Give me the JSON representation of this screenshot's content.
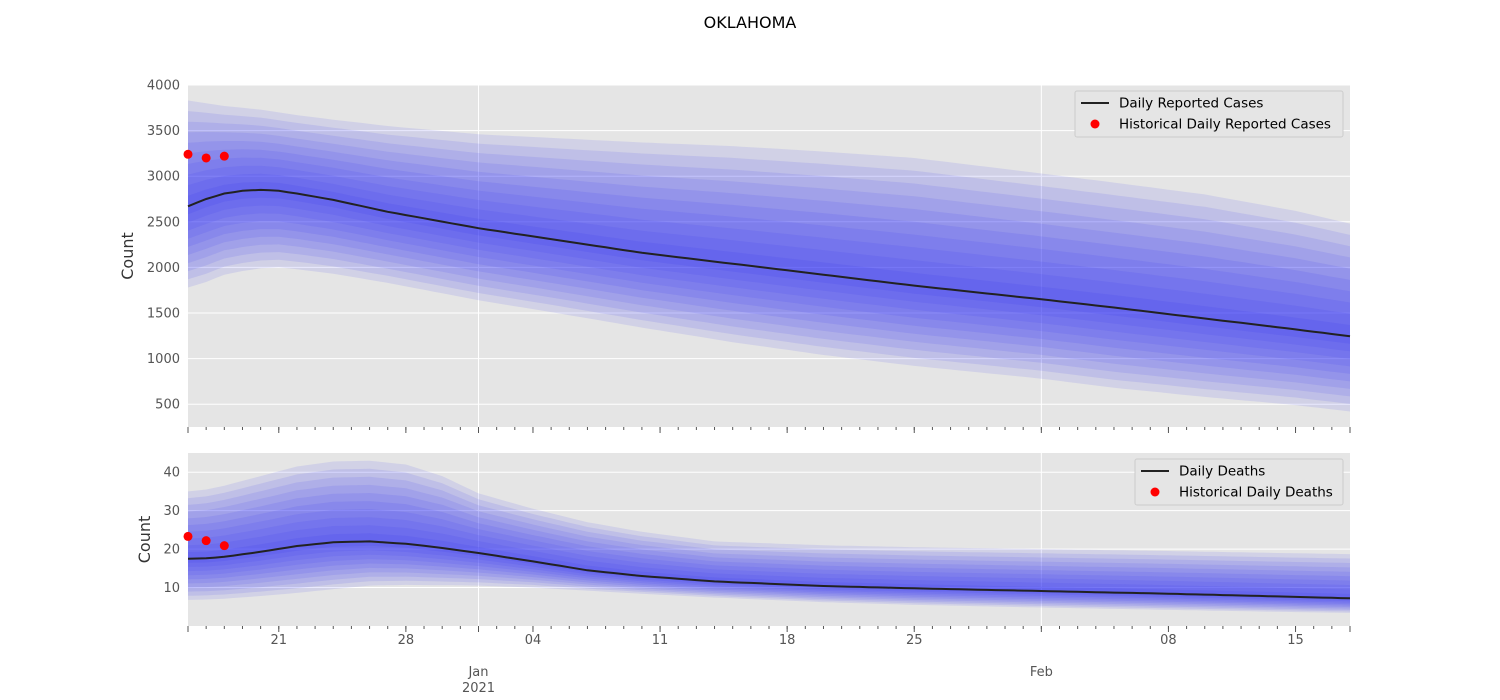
{
  "title": "OKLAHOMA",
  "chart_data": [
    {
      "type": "line",
      "ylabel": "Count",
      "xlim": [
        "2020-12-16",
        "2021-02-18"
      ],
      "ylim": [
        250,
        4000
      ],
      "yticks": [
        500,
        1000,
        1500,
        2000,
        2500,
        3000,
        3500,
        4000
      ],
      "grid": true,
      "legend_position": "top-right",
      "band_color": "#2a2af5",
      "line_color": "#222222",
      "point_color": "#ff0000",
      "series": [
        {
          "name": "Daily Reported Cases",
          "x": [
            "2020-12-16",
            "2020-12-17",
            "2020-12-18",
            "2020-12-19",
            "2020-12-20",
            "2020-12-21",
            "2020-12-22",
            "2020-12-24",
            "2020-12-27",
            "2021-01-01",
            "2021-01-05",
            "2021-01-10",
            "2021-01-15",
            "2021-01-20",
            "2021-01-25",
            "2021-02-01",
            "2021-02-05",
            "2021-02-10",
            "2021-02-15",
            "2021-02-18"
          ],
          "values": [
            2670,
            2750,
            2810,
            2840,
            2850,
            2840,
            2810,
            2740,
            2610,
            2430,
            2310,
            2160,
            2040,
            1920,
            1800,
            1650,
            1560,
            1440,
            1320,
            1245
          ],
          "upper": [
            3830,
            3800,
            3770,
            3750,
            3730,
            3700,
            3670,
            3620,
            3550,
            3460,
            3420,
            3370,
            3330,
            3270,
            3200,
            3030,
            2930,
            2800,
            2620,
            2480
          ],
          "lower": [
            1780,
            1840,
            1920,
            1960,
            1990,
            2000,
            1980,
            1930,
            1830,
            1640,
            1510,
            1340,
            1180,
            1040,
            920,
            780,
            680,
            580,
            490,
            420
          ]
        },
        {
          "name": "Historical Daily Reported Cases",
          "type": "scatter",
          "x": [
            "2020-12-16",
            "2020-12-17",
            "2020-12-18"
          ],
          "values": [
            3240,
            3200,
            3220
          ]
        }
      ]
    },
    {
      "type": "line",
      "ylabel": "Count",
      "xlim": [
        "2020-12-16",
        "2021-02-18"
      ],
      "ylim": [
        0,
        45
      ],
      "yticks": [
        10,
        20,
        30,
        40
      ],
      "grid": true,
      "legend_position": "top-right",
      "series": [
        {
          "name": "Daily Deaths",
          "x": [
            "2020-12-16",
            "2020-12-17",
            "2020-12-18",
            "2020-12-20",
            "2020-12-22",
            "2020-12-24",
            "2020-12-26",
            "2020-12-28",
            "2020-12-30",
            "2021-01-01",
            "2021-01-04",
            "2021-01-07",
            "2021-01-10",
            "2021-01-14",
            "2021-01-20",
            "2021-01-25",
            "2021-02-01",
            "2021-02-08",
            "2021-02-14",
            "2021-02-18"
          ],
          "values": [
            17.5,
            17.6,
            18,
            19.3,
            20.8,
            21.8,
            22,
            21.4,
            20.3,
            19,
            16.8,
            14.5,
            13,
            11.6,
            10.4,
            9.8,
            9.1,
            8.4,
            7.7,
            7.2
          ],
          "upper": [
            35,
            35.5,
            36.5,
            39,
            41.5,
            42.8,
            43,
            42,
            39,
            34.5,
            30.5,
            27,
            24.5,
            22,
            21,
            20.5,
            20,
            19.5,
            19,
            18.7
          ],
          "lower": [
            6.8,
            6.9,
            7.1,
            7.8,
            8.6,
            9.6,
            10.5,
            10.7,
            10.6,
            10.5,
            10,
            9.2,
            8.4,
            7.4,
            6.2,
            5.5,
            4.8,
            4.2,
            3.7,
            3.4
          ]
        },
        {
          "name": "Historical Daily Deaths",
          "type": "scatter",
          "x": [
            "2020-12-16",
            "2020-12-17",
            "2020-12-18"
          ],
          "values": [
            23.3,
            22.2,
            20.9
          ]
        }
      ]
    }
  ],
  "x_axis": {
    "major": [
      {
        "date": "2020-12-21",
        "label": "21"
      },
      {
        "date": "2020-12-28",
        "label": "28"
      },
      {
        "date": "2021-01-04",
        "label": "04"
      },
      {
        "date": "2021-01-11",
        "label": "11"
      },
      {
        "date": "2021-01-18",
        "label": "18"
      },
      {
        "date": "2021-01-25",
        "label": "25"
      },
      {
        "date": "2021-02-08",
        "label": "08"
      },
      {
        "date": "2021-02-15",
        "label": "15"
      }
    ],
    "months": [
      {
        "date": "2021-01-01",
        "label": "Jan",
        "year": "2021"
      },
      {
        "date": "2021-02-01",
        "label": "Feb",
        "year": ""
      }
    ]
  }
}
